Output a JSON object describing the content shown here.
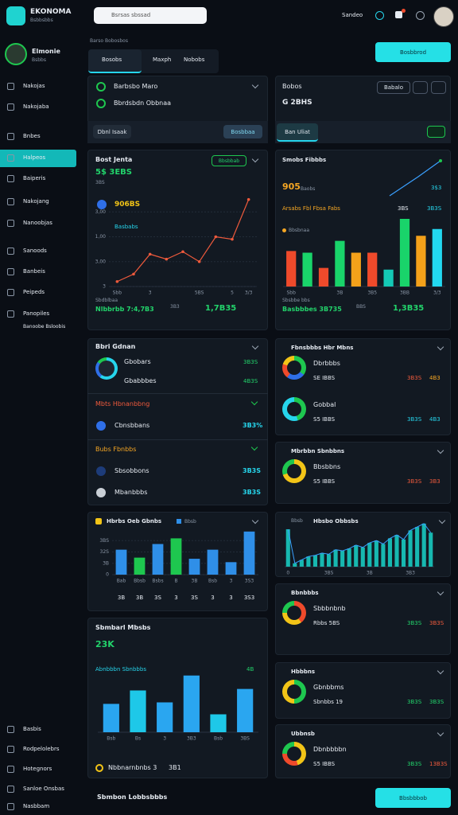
{
  "header": {
    "brand": "EKONOMA",
    "tagline": "Bsbbsbbs",
    "search_placeholder": "Bsrsas sbssad",
    "user": "Sandeo"
  },
  "profile": {
    "name": "Elmonie",
    "role": "Bsbbs"
  },
  "nav": [
    "Nakojas",
    "Nakojaba",
    "Bnbes",
    "Halpeos",
    "Baiperis",
    "Nakojang",
    "Nanoobjas",
    "Sanoods",
    "Banbeis",
    "Peipeds",
    "Panopiles",
    "Banoobe Bsloobis"
  ],
  "nav_bottom": [
    "Basbis",
    "Rodpelolebrs",
    "Hotegnors",
    "Sanloe Onsbas",
    "Nasbbam"
  ],
  "breadcrumb": "Barso Bobosbos",
  "tabs": [
    "Bosobs",
    "Maxph",
    "Nobobs"
  ],
  "primary_button": "Bosbbrod",
  "cards": {
    "accounts": {
      "rows": [
        "Barbsbo Maro",
        "Bbrdsbdn Obbnaa"
      ],
      "left_button": "Dbnl Isaak",
      "right_button": "Bosbbaa"
    },
    "balance": {
      "title": "Bobos",
      "amount": "G 2BHS",
      "button": "Babalo",
      "pill": "Ban Uliat"
    },
    "performance": {
      "title": "Bost Jenta",
      "badge": "Bbsbbab",
      "figure": "5$ 3EBS",
      "figure_note": "3BS",
      "legend": [
        "906BS",
        "Basbabs"
      ],
      "footer_note": "Sbdblbaa",
      "footer_left": "Nlbbrbb 7:4,7B3",
      "footer_mid": "3B3",
      "footer_right": "1,7B35"
    },
    "sales": {
      "title": "Smobs Fibbbs",
      "figure": "905",
      "figure_note": "Baobs",
      "side_value": "3$3",
      "series_label": "Arsabs Fbl Fbsa Fabs",
      "series_values": [
        "3BS",
        "3B3S"
      ],
      "legend": "Bbsbnaa",
      "footer_note": "Sbsbbe bbs",
      "footer_left": "Basbbbes 3B735",
      "footer_mid": "BBS",
      "footer_right": "1,3B35"
    },
    "groups": {
      "title": "Bbri Gdnan",
      "rows": [
        {
          "label": "Gbobars",
          "value": "3B3S"
        },
        {
          "label": "Gbabbbes",
          "value": "4B3S"
        }
      ],
      "sections": [
        {
          "title": "Mbts Hbnanbbng",
          "rows": [
            {
              "label": "Cbnsbbans",
              "value": "3B3%"
            }
          ]
        },
        {
          "title": "Bubs Fbnbbs",
          "rows": [
            {
              "label": "Sbsobbons",
              "value": "3B3S"
            },
            {
              "label": "Mbanbbbs",
              "value": "3B3S"
            }
          ]
        }
      ]
    },
    "distribution": {
      "title": "Hbrbs Oeb Gbnbs",
      "legend": "Bbsb",
      "footer_values": [
        "3B",
        "3B",
        "3S",
        "3",
        "3S",
        "3",
        "3",
        "3S3"
      ]
    },
    "trend": {
      "title": "Hbsbo Obbsbs",
      "legend": "Bbsb"
    },
    "summary": {
      "title": "Sbmbarl Mbsbs",
      "figure": "23K",
      "subtitle": "Abnbbbn Sbnbbbs",
      "side_value": "4B",
      "footer_left": "Nbbnarnbnbs 3",
      "footer_right": "3B1"
    },
    "metrics": [
      {
        "title": "Fbnsbbbs Hbr Mbns",
        "rows": [
          {
            "label": "Dbrbbbs",
            "sub": "SE IBBS",
            "values": [
              "3B3S",
              "4B3"
            ]
          },
          {
            "label": "Gobbal",
            "sub": "S5 IBBS",
            "values": [
              "3B3S",
              "4B3"
            ]
          }
        ]
      },
      {
        "title": "Mbrbbn Sbnbbns",
        "rows": [
          {
            "label": "Bbsbbns",
            "sub": "S5 IBBS",
            "values": [
              "3B3S",
              "3B3"
            ]
          }
        ]
      },
      {
        "title": "Bbnbbbs",
        "rows": [
          {
            "label": "Sbbbnbnb",
            "sub": "Rbbs 5BS",
            "values": [
              "3B3S",
              "3B3S"
            ]
          }
        ]
      },
      {
        "title": "Hbbbns",
        "rows": [
          {
            "label": "Gbnbbms",
            "sub": "Sbnbbs 19",
            "values": [
              "3B3S",
              "3B3S"
            ]
          }
        ]
      },
      {
        "title": "Ubbnsb",
        "rows": [
          {
            "label": "Dbnbbbbn",
            "sub": "S5 IBBS",
            "values": [
              "3B3S",
              "13B3S"
            ]
          }
        ]
      }
    ]
  },
  "footer": {
    "title": "Sbmbon Lobbsbbbs",
    "button": "Bbsbbbob"
  },
  "chart_data": [
    {
      "type": "line",
      "categories": [
        "Sbb",
        null,
        "3",
        null,
        null,
        "5BS",
        null,
        "5",
        "3/3"
      ],
      "values": [
        0.2,
        0.5,
        1.3,
        1.1,
        1.4,
        1.0,
        2.0,
        1.9,
        3.5
      ],
      "color": "#ef5a3c",
      "ylim": [
        0,
        4
      ],
      "yticks": [
        {
          "value": 0,
          "label": "3"
        },
        {
          "value": 1,
          "label": "3,00"
        },
        {
          "value": 2,
          "label": "1,00"
        },
        {
          "value": 3,
          "label": "3,00"
        }
      ],
      "grid": true
    },
    {
      "type": "bar",
      "categories": [
        "Sbb",
        null,
        null,
        "3B",
        null,
        "3B5",
        null,
        "3BB",
        null,
        "3/3"
      ],
      "values": [
        2.1,
        2.0,
        1.1,
        2.7,
        2.0,
        2.0,
        1.0,
        4.0,
        3.0,
        3.4
      ],
      "colors": [
        "#ef4a2b",
        "#19d46a",
        "#ef4a2b",
        "#19d46a",
        "#f4a11a",
        "#ef4a2b",
        "#14c9b6",
        "#19d46a",
        "#f4a11a",
        "#22d8f0"
      ],
      "ylim": [
        0,
        4
      ],
      "grid": false
    },
    {
      "type": "bar",
      "categories": [
        "Bab",
        "Bbsb",
        "Bsbs",
        "B",
        "3B",
        "Bsb",
        "3",
        "3S3"
      ],
      "values": [
        2.2,
        1.5,
        2.7,
        3.2,
        1.4,
        2.2,
        1.1,
        3.8
      ],
      "colors": [
        "#2f8fe8",
        "#1ec74f",
        "#2f8fe8",
        "#1ec74f",
        "#2f8fe8",
        "#2f8fe8",
        "#2f8fe8",
        "#2f8fe8"
      ],
      "ylim": [
        0,
        4
      ],
      "yticks": [
        0,
        {
          "value": 1,
          "label": "3B"
        },
        {
          "value": 2,
          "label": "32S"
        },
        {
          "value": 3,
          "label": "3BS"
        }
      ],
      "grid": true
    },
    {
      "type": "bar",
      "categories": [
        "Bsb",
        "Bs",
        "3",
        "3B3",
        "Bsb",
        "3BS"
      ],
      "values": [
        1.9,
        2.8,
        2.0,
        3.8,
        1.2,
        2.9
      ],
      "colors": [
        "#2aa6f0",
        "#1ec8e8",
        "#2aa6f0",
        "#2aa6f0",
        "#1ec8e8",
        "#2aa6f0"
      ],
      "ylim": [
        0,
        4
      ],
      "grid": false
    },
    {
      "type": "bar",
      "categories": [
        "0",
        null,
        null,
        null,
        null,
        null,
        "3BS",
        null,
        null,
        null,
        null,
        null,
        "3B",
        null,
        null,
        null,
        null,
        null,
        "3B3",
        null,
        null,
        null
      ],
      "values": [
        3.3,
        0.3,
        0.6,
        0.9,
        1.0,
        1.2,
        1.1,
        1.5,
        1.4,
        1.6,
        1.9,
        1.7,
        2.1,
        2.3,
        2.0,
        2.5,
        2.8,
        2.4,
        3.2,
        3.5,
        3.8,
        3.0
      ],
      "color": "#17b8b0",
      "line_color": "#3aa0ff",
      "trend_line": true,
      "ylim": [
        0,
        4
      ],
      "grid": false
    }
  ]
}
